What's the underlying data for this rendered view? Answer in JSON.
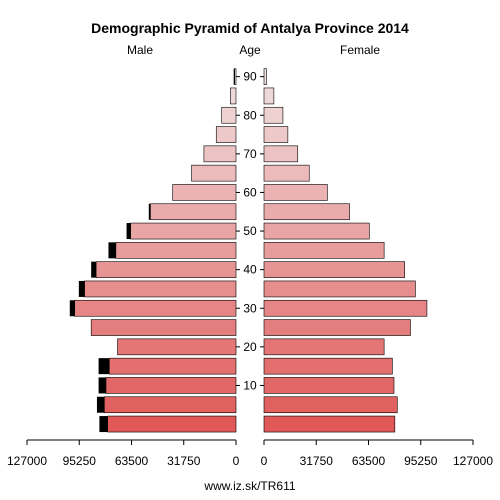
{
  "chart_data": {
    "type": "bar",
    "title": "Demographic Pyramid of Antalya Province 2014",
    "left_label": "Male",
    "center_label": "Age",
    "right_label": "Female",
    "source": "www.iz.sk/TR611",
    "age_ticks": [
      "10",
      "20",
      "30",
      "40",
      "50",
      "60",
      "70",
      "80",
      "90"
    ],
    "x_ticks_left": [
      "127000",
      "95250",
      "63500",
      "31750",
      "0"
    ],
    "x_ticks_right": [
      "0",
      "31750",
      "63500",
      "95250",
      "127000"
    ],
    "xlim": [
      0,
      127000
    ],
    "age_groups": [
      "0-4",
      "5-9",
      "10-14",
      "15-19",
      "20-24",
      "25-29",
      "30-34",
      "35-39",
      "40-44",
      "45-49",
      "50-54",
      "55-59",
      "60-64",
      "65-69",
      "70-74",
      "75-79",
      "80-84",
      "85-89",
      "90+"
    ],
    "series": [
      {
        "name": "Male",
        "values": [
          78000,
          80000,
          79000,
          77000,
          72000,
          88000,
          98000,
          92000,
          85000,
          73000,
          64000,
          52000,
          38500,
          27000,
          19500,
          12000,
          8700,
          3400,
          800
        ],
        "excess": [
          5000,
          4500,
          4500,
          6500,
          0,
          0,
          3000,
          3500,
          3000,
          4500,
          2500,
          1000,
          0,
          0,
          0,
          0,
          0,
          0,
          600
        ]
      },
      {
        "name": "Female",
        "values": [
          79500,
          81000,
          79000,
          78000,
          73000,
          89000,
          99000,
          92000,
          85500,
          73000,
          64000,
          52000,
          38500,
          27500,
          20500,
          14500,
          11500,
          6000,
          1500
        ]
      }
    ],
    "colors": {
      "ramp_young": "#e05858",
      "ramp_old": "#f0e0e0",
      "excess": "#000000",
      "tick_color": "#000000"
    }
  }
}
